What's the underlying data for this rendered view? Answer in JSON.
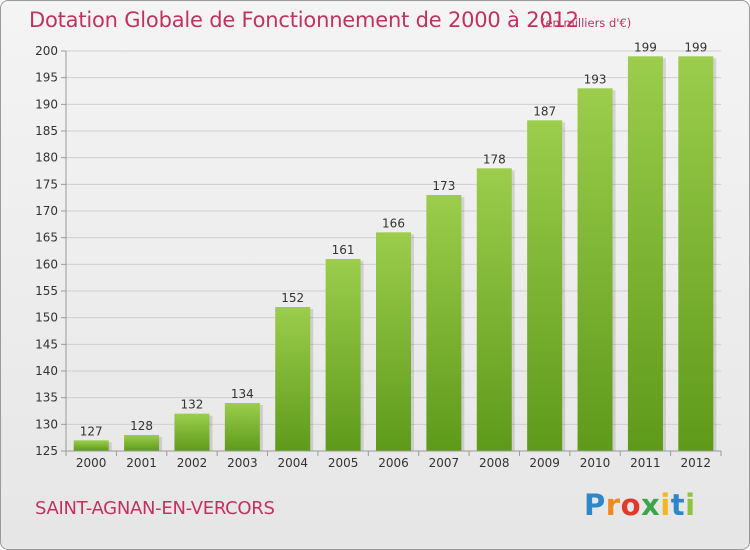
{
  "title": "Dotation Globale de Fonctionnement de 2000 à 2012",
  "subtitle": "(en milliers d'€)",
  "commune": "SAINT-AGNAN-EN-VERCORS",
  "logo": {
    "letters": [
      "P",
      "r",
      "o",
      "x",
      "i",
      "t",
      "i"
    ],
    "colors": [
      "#2f86c8",
      "#f08a1e",
      "#e03a2a",
      "#3aa84a",
      "#f2b81e",
      "#2f86c8",
      "#8bc43f"
    ]
  },
  "colors": {
    "bar_top": "#9ccd4c",
    "bar_bottom": "#5e9a1a",
    "text": "#c3325f"
  },
  "chart_data": {
    "type": "bar",
    "categories": [
      "2000",
      "2001",
      "2002",
      "2003",
      "2004",
      "2005",
      "2006",
      "2007",
      "2008",
      "2009",
      "2010",
      "2011",
      "2012"
    ],
    "values": [
      127,
      128,
      132,
      134,
      152,
      161,
      166,
      173,
      178,
      187,
      193,
      199,
      199
    ],
    "value_labels": [
      "127",
      "128",
      "132",
      "134",
      "152",
      "161",
      "166",
      "173",
      "178",
      "187",
      "193",
      "199",
      "199"
    ],
    "ylim": [
      125,
      200
    ],
    "yticks": [
      125,
      130,
      135,
      140,
      145,
      150,
      155,
      160,
      165,
      170,
      175,
      180,
      185,
      190,
      195,
      200
    ],
    "ytick_labels": [
      "125",
      "130",
      "135",
      "140",
      "145",
      "150",
      "155",
      "160",
      "165",
      "170",
      "175",
      "180",
      "185",
      "190",
      "195",
      "200"
    ],
    "grid": true,
    "xlabel": "",
    "ylabel": ""
  }
}
